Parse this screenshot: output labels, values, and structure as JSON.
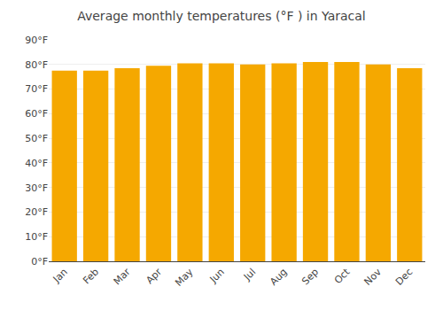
{
  "chart_data": {
    "type": "bar",
    "title": "Average monthly temperatures (°F ) in Yaracal",
    "categories": [
      "Jan",
      "Feb",
      "Mar",
      "Apr",
      "May",
      "Jun",
      "Jul",
      "Aug",
      "Sep",
      "Oct",
      "Nov",
      "Dec"
    ],
    "values": [
      77.5,
      77.5,
      78.5,
      79.5,
      80.5,
      80.5,
      80.0,
      80.5,
      81.0,
      81.0,
      80.0,
      78.5
    ],
    "color": "#F5A800",
    "ylim": [
      0,
      90
    ],
    "yticks": [
      {
        "value": 0,
        "label": "0°F"
      },
      {
        "value": 10,
        "label": "10°F"
      },
      {
        "value": 20,
        "label": "20°F"
      },
      {
        "value": 30,
        "label": "30°F"
      },
      {
        "value": 40,
        "label": "40°F"
      },
      {
        "value": 50,
        "label": "50°F"
      },
      {
        "value": 60,
        "label": "60°F"
      },
      {
        "value": 70,
        "label": "70°F"
      },
      {
        "value": 80,
        "label": "80°F"
      },
      {
        "value": 90,
        "label": "90°F"
      }
    ],
    "grid": true
  }
}
